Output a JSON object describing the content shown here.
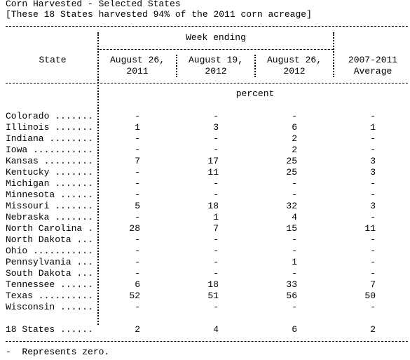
{
  "title": "Corn Harvested - Selected States",
  "subtitle": "[These 18 States harvested 94% of the 2011 corn acreage]",
  "table": {
    "group_header": "Week ending",
    "state_header": "State",
    "columns": [
      {
        "line1": "August 26,",
        "line2": "2011"
      },
      {
        "line1": "August 19,",
        "line2": "2012"
      },
      {
        "line1": "August 26,",
        "line2": "2012"
      },
      {
        "line1": "2007-2011",
        "line2": "Average"
      }
    ],
    "unit": "percent",
    "rows": [
      [
        "Colorado .......",
        "-",
        "-",
        "-",
        "-"
      ],
      [
        "Illinois .......",
        1,
        3,
        6,
        1
      ],
      [
        "Indiana ........",
        "-",
        "-",
        2,
        "-"
      ],
      [
        "Iowa ...........",
        "-",
        "-",
        2,
        "-"
      ],
      [
        "Kansas .........",
        7,
        17,
        25,
        3
      ],
      [
        "Kentucky .......",
        "-",
        11,
        25,
        3
      ],
      [
        "Michigan .......",
        "-",
        "-",
        "-",
        "-"
      ],
      [
        "Minnesota ......",
        "-",
        "-",
        "-",
        "-"
      ],
      [
        "Missouri .......",
        5,
        18,
        32,
        3
      ],
      [
        "Nebraska .......",
        "-",
        1,
        4,
        "-"
      ],
      [
        "North Carolina .",
        28,
        7,
        15,
        11
      ],
      [
        "North Dakota ...",
        "-",
        "-",
        "-",
        "-"
      ],
      [
        "Ohio ...........",
        "-",
        "-",
        "-",
        "-"
      ],
      [
        "Pennsylvania ...",
        "-",
        "-",
        1,
        "-"
      ],
      [
        "South Dakota ...",
        "-",
        "-",
        "-",
        "-"
      ],
      [
        "Tennessee ......",
        6,
        18,
        33,
        7
      ],
      [
        "Texas ..........",
        52,
        51,
        56,
        50
      ],
      [
        "Wisconsin ......",
        "-",
        "-",
        "-",
        "-"
      ]
    ],
    "total": [
      "18 States ......",
      2,
      4,
      6,
      2
    ]
  },
  "footnote": "-  Represents zero."
}
